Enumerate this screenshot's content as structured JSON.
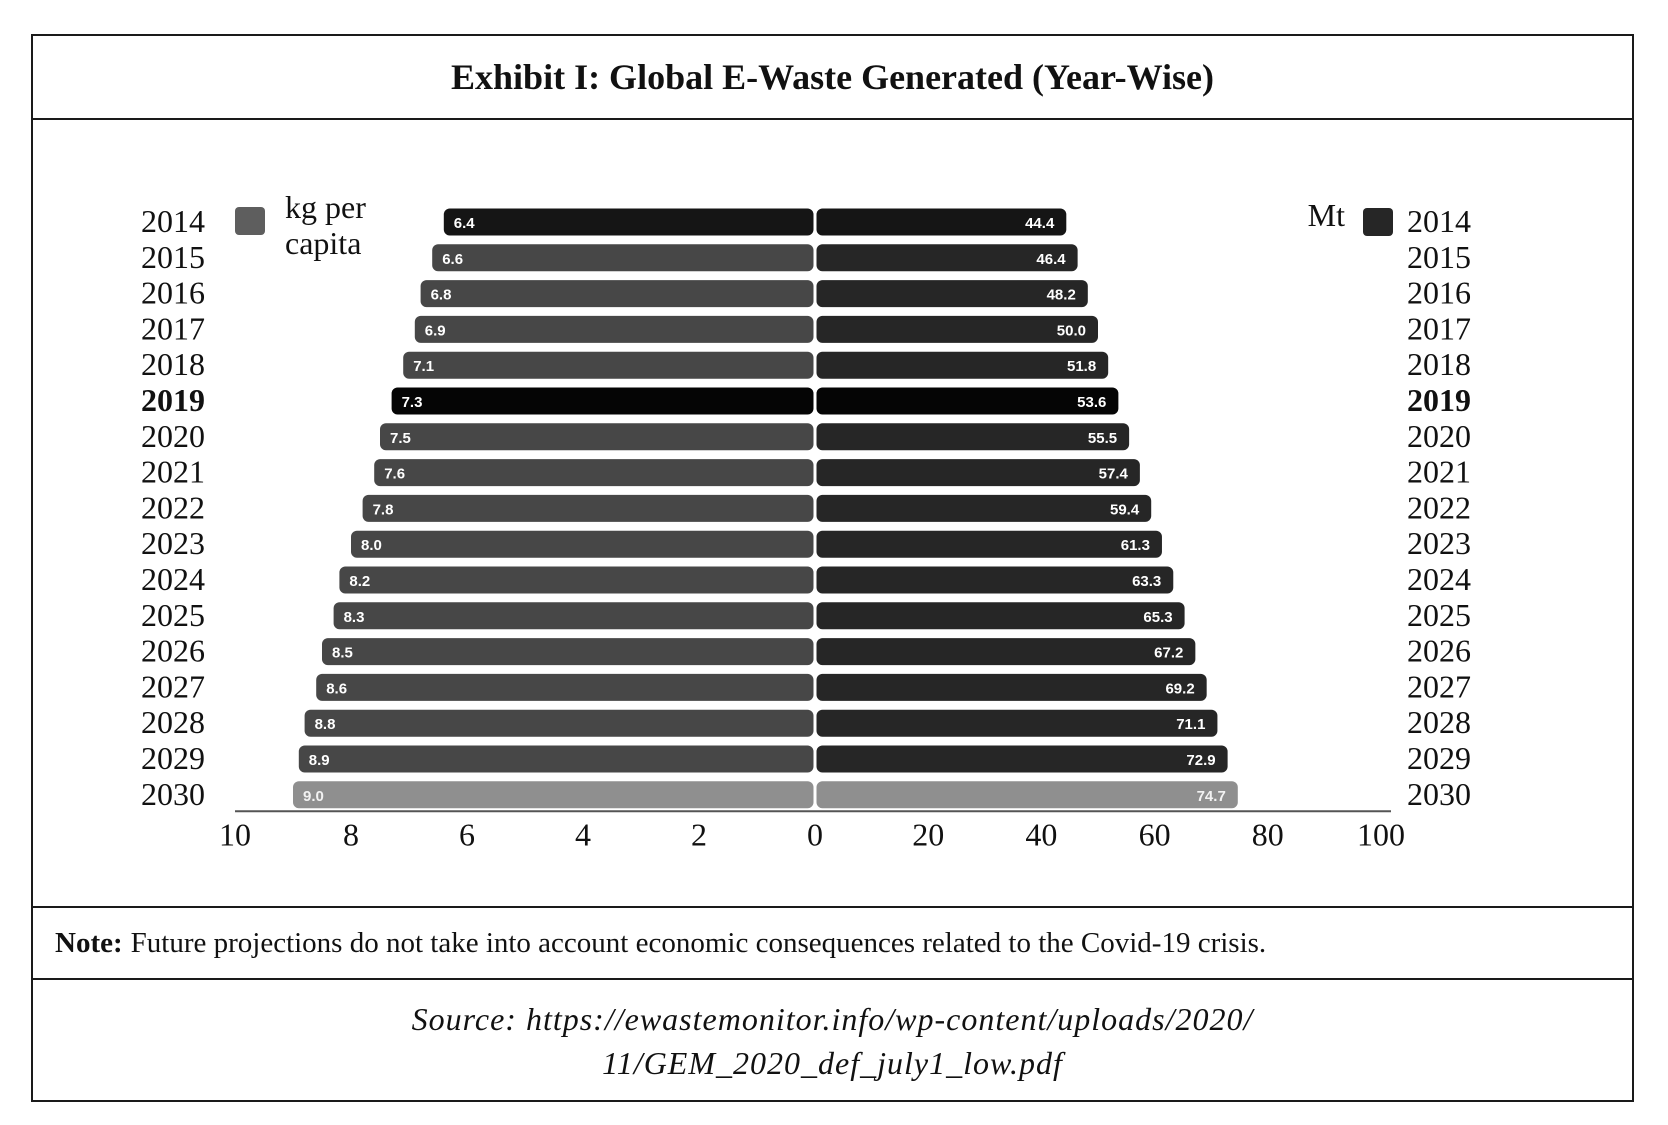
{
  "title": "Exhibit I: Global E-Waste Generated (Year-Wise)",
  "note": {
    "label": "Note:",
    "text": "Future projections do not take into account economic consequences related to the Covid-19 crisis."
  },
  "source": {
    "line1": "Source:  https://ewastemonitor.info/wp-content/uploads/2020/",
    "line2": "11/GEM_2020_def_july1_low.pdf"
  },
  "chart_data": {
    "type": "bar",
    "orientation": "horizontal-butterfly",
    "categories": [
      "2014",
      "2015",
      "2016",
      "2017",
      "2018",
      "2019",
      "2020",
      "2021",
      "2022",
      "2023",
      "2024",
      "2025",
      "2026",
      "2027",
      "2028",
      "2029",
      "2030"
    ],
    "highlight_category": "2019",
    "series": [
      {
        "name": "kg per capita",
        "legend_lines": [
          "kg per",
          "capita"
        ],
        "side": "left",
        "values": [
          6.4,
          6.6,
          6.8,
          6.9,
          7.1,
          7.3,
          7.5,
          7.6,
          7.8,
          8.0,
          8.2,
          8.3,
          8.5,
          8.6,
          8.8,
          8.9,
          9.0
        ],
        "labels": [
          "6.4",
          "6.6",
          "6.8",
          "6.9",
          "7.1",
          "7.3",
          "7.5",
          "7.6",
          "7.8",
          "8.0",
          "8.2",
          "8.3",
          "8.5",
          "8.6",
          "8.8",
          "8.9",
          "9.0"
        ],
        "axis_ticks": [
          "10",
          "8",
          "6",
          "4",
          "2",
          "0"
        ],
        "axis_range": [
          10,
          0
        ],
        "color": "#474747"
      },
      {
        "name": "Mt",
        "legend_lines": [
          "Mt"
        ],
        "side": "right",
        "values": [
          44.4,
          46.4,
          48.2,
          50.0,
          51.8,
          53.6,
          55.5,
          57.4,
          59.4,
          61.3,
          63.3,
          65.3,
          67.2,
          69.2,
          71.1,
          72.9,
          74.7
        ],
        "labels": [
          "44.4",
          "46.4",
          "48.2",
          "50.0",
          "51.8",
          "53.6",
          "55.5",
          "57.4",
          "59.4",
          "61.3",
          "63.3",
          "65.3",
          "67.2",
          "69.2",
          "71.1",
          "72.9",
          "74.7"
        ],
        "axis_ticks": [
          "20",
          "40",
          "60",
          "80",
          "100"
        ],
        "axis_range": [
          0,
          100
        ],
        "color": "#262626"
      }
    ],
    "colors": {
      "first_row": "#151515",
      "highlight_row": "#050505",
      "last_row": "#8f8f8f",
      "legend_left": "#5e5e5e",
      "legend_right": "#262626"
    },
    "grid": false,
    "legend_placement": "top-left and top-right"
  }
}
